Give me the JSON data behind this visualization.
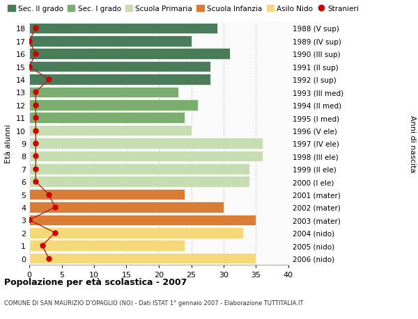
{
  "ages": [
    18,
    17,
    16,
    15,
    14,
    13,
    12,
    11,
    10,
    9,
    8,
    7,
    6,
    5,
    4,
    3,
    2,
    1,
    0
  ],
  "years": [
    "1988 (V sup)",
    "1989 (IV sup)",
    "1990 (III sup)",
    "1991 (II sup)",
    "1992 (I sup)",
    "1993 (III med)",
    "1994 (II med)",
    "1995 (I med)",
    "1996 (V ele)",
    "1997 (IV ele)",
    "1998 (III ele)",
    "1999 (II ele)",
    "2000 (I ele)",
    "2001 (mater)",
    "2002 (mater)",
    "2003 (mater)",
    "2004 (nido)",
    "2005 (nido)",
    "2006 (nido)"
  ],
  "bar_values": [
    29,
    25,
    31,
    28,
    28,
    23,
    26,
    24,
    25,
    36,
    36,
    34,
    34,
    24,
    30,
    35,
    33,
    24,
    35
  ],
  "bar_colors": [
    "#4a7c59",
    "#4a7c59",
    "#4a7c59",
    "#4a7c59",
    "#4a7c59",
    "#7aad6e",
    "#7aad6e",
    "#7aad6e",
    "#c5ddb0",
    "#c5ddb0",
    "#c5ddb0",
    "#c5ddb0",
    "#c5ddb0",
    "#d97c35",
    "#d97c35",
    "#d97c35",
    "#f5d87a",
    "#f5d87a",
    "#f5d87a"
  ],
  "stranieri_values": [
    1,
    0,
    1,
    0,
    3,
    1,
    1,
    1,
    1,
    1,
    1,
    1,
    1,
    3,
    4,
    0,
    4,
    2,
    3
  ],
  "legend_labels": [
    "Sec. II grado",
    "Sec. I grado",
    "Scuola Primaria",
    "Scuola Infanzia",
    "Asilo Nido",
    "Stranieri"
  ],
  "legend_colors": [
    "#4a7c59",
    "#7aad6e",
    "#c5ddb0",
    "#d97c35",
    "#f5d87a",
    "#cc0000"
  ],
  "title": "Popolazione per età scolastica - 2007",
  "subtitle": "COMUNE DI SAN MAURIZIO D'OPAGLIO (NO) - Dati ISTAT 1° gennaio 2007 - Elaborazione TUTTITALIA.IT",
  "ylabel_left": "Età alunni",
  "ylabel_right": "Anni di nascita",
  "xlim": [
    0,
    40
  ],
  "bg_color": "#ffffff"
}
